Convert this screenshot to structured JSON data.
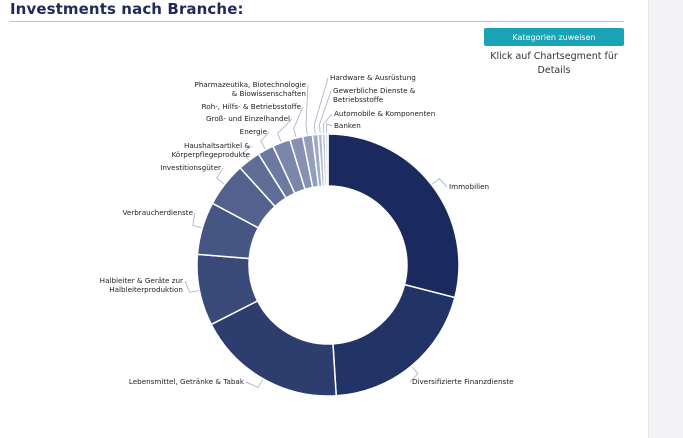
{
  "header": {
    "title": "Investments nach Branche:"
  },
  "actions": {
    "assign_label": "Kategorien zuweisen",
    "hint": "Klick auf Chartsegment für Details"
  },
  "chart_data": {
    "type": "pie",
    "donut": true,
    "title": "",
    "legend": "none",
    "labels": [
      "Immobilien",
      "Diversifizierte Finanzdienste",
      "Lebensmittel, Getränke & Tabak",
      "Halbleiter & Geräte zur Halbleiterproduktion",
      "Verbraucherdienste",
      "Investitionsgüter",
      "Haushaltsartikel & Körperpflegeprodukte",
      "Energie",
      "Groß- und Einzelhandel",
      "Roh-, Hilfs- & Betriebsstoffe",
      "Pharmazeutika, Biotechnologie & Biowissenschaften",
      "Hardware & Ausrüstung",
      "Gewerbliche Dienste & Betriebsstoffe",
      "Automobile & Komponenten",
      "Banken"
    ],
    "values": [
      29.0,
      20.0,
      18.5,
      8.8,
      6.5,
      5.5,
      2.8,
      2.0,
      2.2,
      1.6,
      1.2,
      0.7,
      0.5,
      0.4,
      0.3
    ],
    "colors": [
      "#1b2a5e",
      "#223466",
      "#2c3d6e",
      "#3a4a78",
      "#465683",
      "#53628d",
      "#606e97",
      "#6d7aa0",
      "#7a86aa",
      "#8792b3",
      "#949ebd",
      "#a2abc6",
      "#b0b8cf",
      "#bec4d8",
      "#ccd1e1"
    ]
  }
}
